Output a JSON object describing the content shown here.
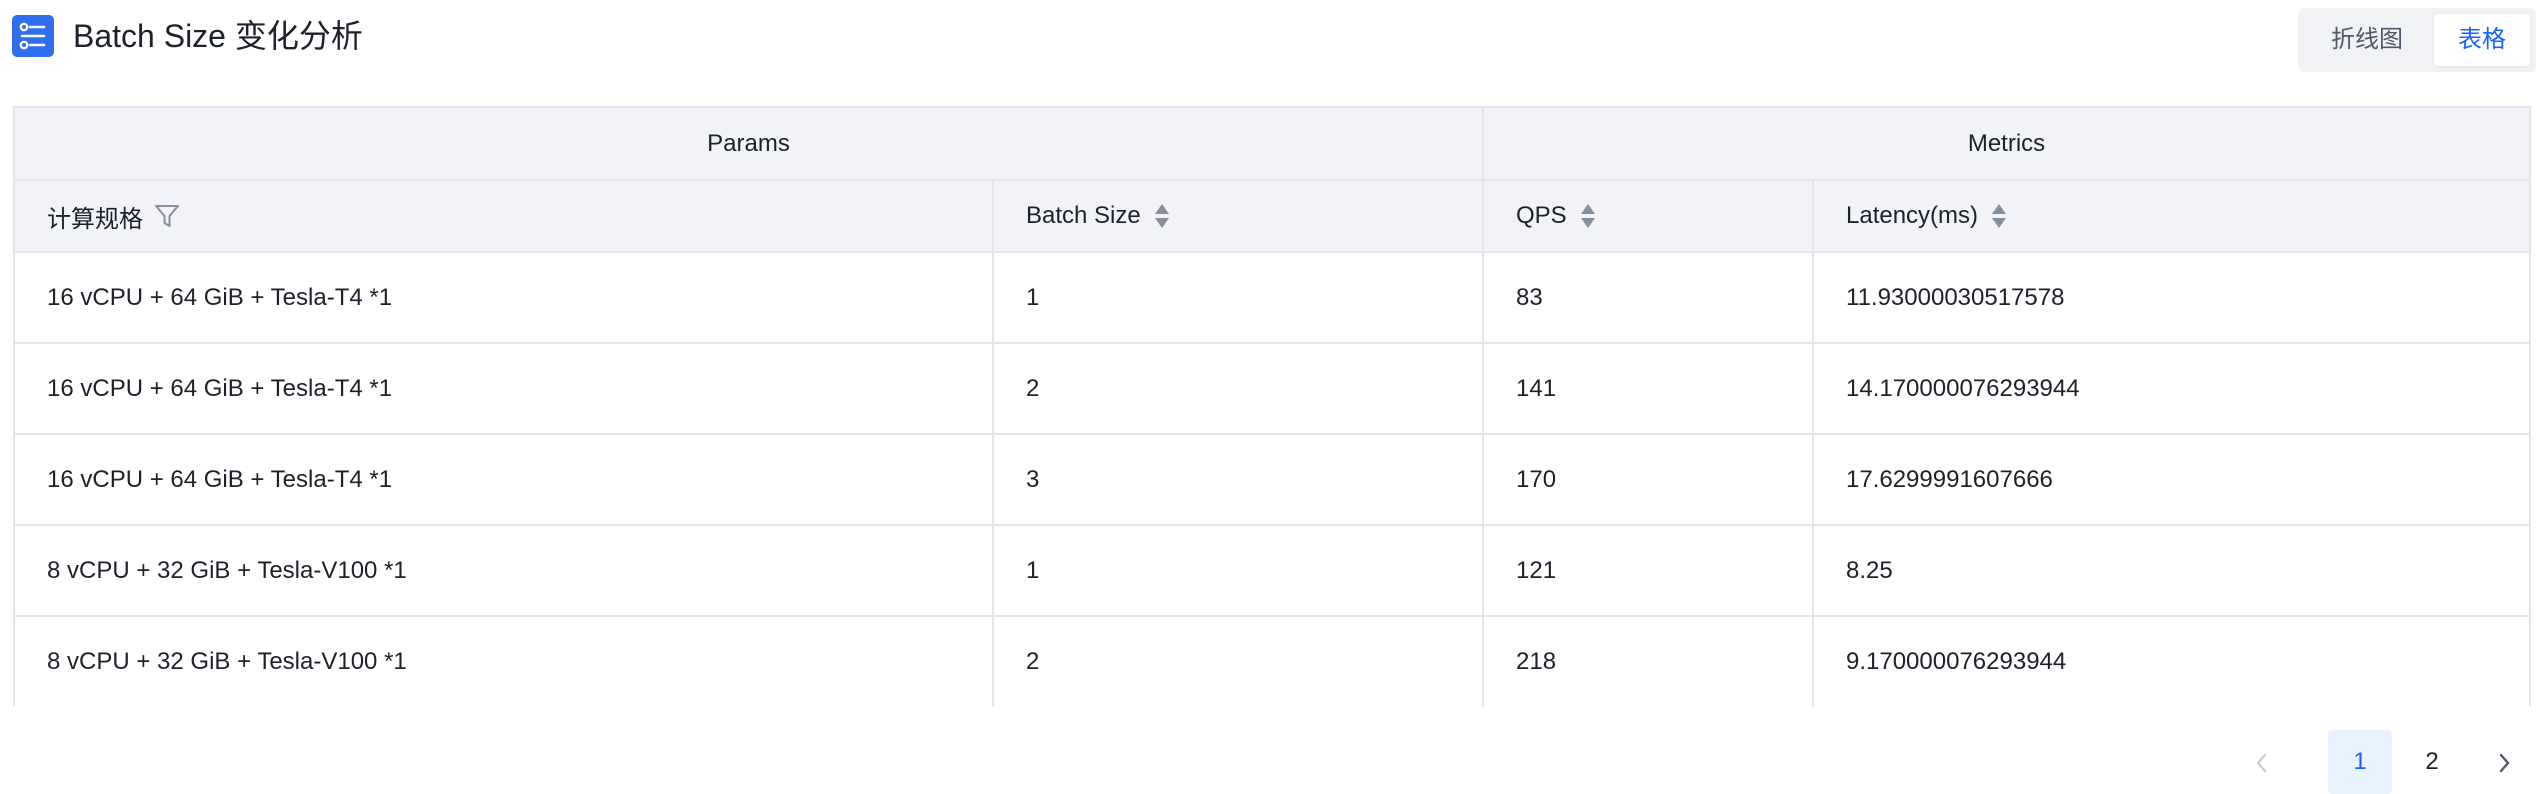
{
  "header": {
    "title": "Batch Size 变化分析",
    "title_icon": "list-settings-icon",
    "accent_color": "#2f6fed"
  },
  "view_toggle": {
    "options": [
      "折线图",
      "表格"
    ],
    "selected": "表格",
    "selected_color": "#1664ff"
  },
  "table": {
    "groups": [
      "Params",
      "Metrics"
    ],
    "columns": [
      {
        "label": "计算规格",
        "control": "filter-icon"
      },
      {
        "label": "Batch Size",
        "control": "sort-icon"
      },
      {
        "label": "QPS",
        "control": "sort-icon"
      },
      {
        "label": "Latency(ms)",
        "control": "sort-icon"
      }
    ],
    "rows": [
      {
        "spec": "16 vCPU + 64 GiB + Tesla-T4 *1",
        "batch_size": "1",
        "qps": "83",
        "latency": "11.93000030517578"
      },
      {
        "spec": "16 vCPU + 64 GiB + Tesla-T4 *1",
        "batch_size": "2",
        "qps": "141",
        "latency": "14.170000076293944"
      },
      {
        "spec": "16 vCPU + 64 GiB + Tesla-T4 *1",
        "batch_size": "3",
        "qps": "170",
        "latency": "17.6299991607666"
      },
      {
        "spec": "8 vCPU + 32 GiB + Tesla-V100 *1",
        "batch_size": "1",
        "qps": "121",
        "latency": "8.25"
      },
      {
        "spec": "8 vCPU + 32 GiB + Tesla-V100 *1",
        "batch_size": "2",
        "qps": "218",
        "latency": "9.170000076293944"
      }
    ]
  },
  "pagination": {
    "pages": [
      "1",
      "2"
    ],
    "current": "1",
    "prev_icon": "chevron-left-icon",
    "next_icon": "chevron-right-icon"
  }
}
